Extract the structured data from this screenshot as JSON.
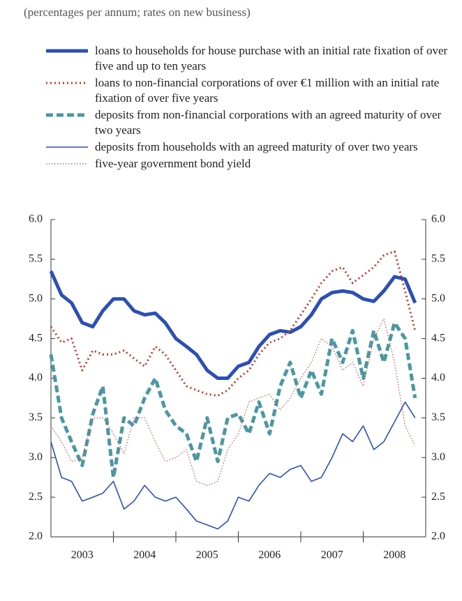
{
  "chart_data": {
    "type": "line",
    "subtitle": "(percentages per annum; rates on new business)",
    "x": [
      2003.0,
      2003.17,
      2003.33,
      2003.5,
      2003.67,
      2003.83,
      2004.0,
      2004.17,
      2004.33,
      2004.5,
      2004.67,
      2004.83,
      2005.0,
      2005.17,
      2005.33,
      2005.5,
      2005.67,
      2005.83,
      2006.0,
      2006.17,
      2006.33,
      2006.5,
      2006.67,
      2006.83,
      2007.0,
      2007.17,
      2007.33,
      2007.5,
      2007.67,
      2007.83,
      2008.0,
      2008.17,
      2008.33,
      2008.5,
      2008.67,
      2008.83
    ],
    "series": [
      {
        "name": "loans to households for house purchase with an initial rate fixation of over five and up to ten years",
        "color": "#2b4fb5",
        "style": "thick-solid",
        "values": [
          5.35,
          5.05,
          4.95,
          4.7,
          4.65,
          4.85,
          5.0,
          5.0,
          4.85,
          4.8,
          4.82,
          4.7,
          4.5,
          4.4,
          4.3,
          4.1,
          4.0,
          4.0,
          4.15,
          4.2,
          4.4,
          4.55,
          4.6,
          4.58,
          4.65,
          4.8,
          5.0,
          5.08,
          5.1,
          5.08,
          5.0,
          4.97,
          5.1,
          5.28,
          5.25,
          4.95
        ]
      },
      {
        "name": "loans to non-financial corporations of over €1 million with an initial rate fixation of over five years",
        "color": "#c0392b",
        "style": "thick-dotted",
        "values": [
          4.65,
          4.45,
          4.5,
          4.1,
          4.35,
          4.3,
          4.3,
          4.35,
          4.25,
          4.15,
          4.4,
          4.3,
          4.1,
          3.9,
          3.85,
          3.8,
          3.78,
          3.85,
          4.0,
          4.1,
          4.3,
          4.45,
          4.5,
          4.6,
          4.8,
          5.0,
          5.2,
          5.35,
          5.4,
          5.2,
          5.3,
          5.4,
          5.55,
          5.6,
          5.1,
          4.6
        ]
      },
      {
        "name": "deposits from non-financial corporations with an agreed maturity of over two years",
        "color": "#4b97a3",
        "style": "thick-dashed",
        "values": [
          4.3,
          3.5,
          3.2,
          2.9,
          3.55,
          3.9,
          2.75,
          3.5,
          3.4,
          3.75,
          4.0,
          3.6,
          3.4,
          3.3,
          2.95,
          3.5,
          2.95,
          3.5,
          3.55,
          3.3,
          3.7,
          3.3,
          3.9,
          4.2,
          3.75,
          4.1,
          3.8,
          4.5,
          4.2,
          4.6,
          4.0,
          4.6,
          4.2,
          4.7,
          4.5,
          3.75
        ]
      },
      {
        "name": "deposits from households with an agreed maturity of over two years",
        "color": "#2b4fb5",
        "style": "thin-solid",
        "values": [
          3.2,
          2.75,
          2.7,
          2.45,
          2.5,
          2.55,
          2.7,
          2.35,
          2.45,
          2.65,
          2.5,
          2.45,
          2.5,
          2.35,
          2.2,
          2.15,
          2.1,
          2.2,
          2.5,
          2.45,
          2.65,
          2.8,
          2.75,
          2.85,
          2.9,
          2.7,
          2.75,
          3.0,
          3.3,
          3.2,
          3.4,
          3.1,
          3.2,
          3.45,
          3.7,
          3.5
        ]
      },
      {
        "name": "five-year government bond yield",
        "color": "#c0504d",
        "style": "thin-dotted",
        "values": [
          3.4,
          3.2,
          2.95,
          3.0,
          3.5,
          3.5,
          3.3,
          3.05,
          3.5,
          3.5,
          3.2,
          2.95,
          3.0,
          3.1,
          2.7,
          2.65,
          2.7,
          3.1,
          3.3,
          3.7,
          3.75,
          3.8,
          3.6,
          3.75,
          4.0,
          4.2,
          4.5,
          4.4,
          4.1,
          4.2,
          3.9,
          4.5,
          4.75,
          4.2,
          3.4,
          3.15
        ]
      }
    ],
    "xlim": [
      2003,
      2009
    ],
    "xticks": [
      {
        "value": 2003.5,
        "label": "2003"
      },
      {
        "value": 2004.5,
        "label": "2004"
      },
      {
        "value": 2005.5,
        "label": "2005"
      },
      {
        "value": 2006.5,
        "label": "2006"
      },
      {
        "value": 2007.5,
        "label": "2007"
      },
      {
        "value": 2008.5,
        "label": "2008"
      }
    ],
    "x_boundary_ticks": [
      2004,
      2005,
      2006,
      2007,
      2008
    ],
    "ylim": [
      2.0,
      6.0
    ],
    "yticks": [
      {
        "value": 2.0,
        "label": "2.0"
      },
      {
        "value": 2.5,
        "label": "2.5"
      },
      {
        "value": 3.0,
        "label": "3.0"
      },
      {
        "value": 3.5,
        "label": "3.5"
      },
      {
        "value": 4.0,
        "label": "4.0"
      },
      {
        "value": 4.5,
        "label": "4.5"
      },
      {
        "value": 5.0,
        "label": "5.0"
      },
      {
        "value": 5.5,
        "label": "5.5"
      },
      {
        "value": 6.0,
        "label": "6.0"
      }
    ],
    "y2lim": [
      2.0,
      6.0
    ],
    "y2ticks": [
      {
        "value": 2.0,
        "label": "2.0"
      },
      {
        "value": 2.5,
        "label": "2.5"
      },
      {
        "value": 3.0,
        "label": "3.0"
      },
      {
        "value": 3.5,
        "label": "3.5"
      },
      {
        "value": 4.0,
        "label": "4.0"
      },
      {
        "value": 4.5,
        "label": "4.5"
      },
      {
        "value": 5.0,
        "label": "5.0"
      },
      {
        "value": 5.5,
        "label": "5.5"
      },
      {
        "value": 6.0,
        "label": "6.0"
      }
    ],
    "grid": false
  }
}
